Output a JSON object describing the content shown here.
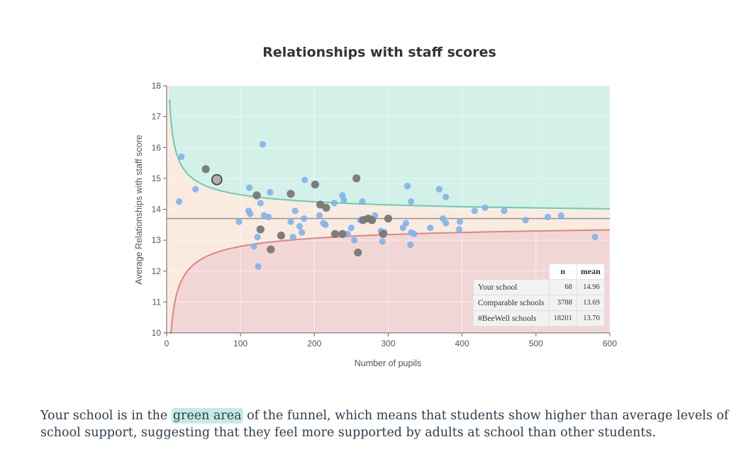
{
  "chart_data": {
    "type": "scatter",
    "title": "Relationships with staff scores",
    "xlabel": "Number of pupils",
    "ylabel": "Average Relationships with staff score",
    "xlim": [
      0,
      600
    ],
    "ylim": [
      10,
      18
    ],
    "x_ticks": [
      "0",
      "100",
      "200",
      "300",
      "400",
      "500",
      "600"
    ],
    "y_ticks": [
      "10",
      "11",
      "12",
      "13",
      "14",
      "15",
      "16",
      "17",
      "18"
    ],
    "grid": true,
    "mean_line": 13.7,
    "colors": {
      "green_area": "#d3f0e9",
      "neutral_area": "#f9ebdf",
      "red_area": "#f2d6d6",
      "upper_curve": "#6ccbb0",
      "lower_curve": "#de8580",
      "mean_line": "#9a9a9a",
      "blue_points": "#7fb3ec",
      "grey_points": "#777777",
      "your_school": "#b0b0b0"
    },
    "series": [
      {
        "id": "other",
        "points": [
          [
            20,
            15.7
          ],
          [
            17,
            14.25
          ],
          [
            39,
            14.65
          ],
          [
            98,
            13.6
          ],
          [
            112,
            14.7
          ],
          [
            111,
            13.95
          ],
          [
            113,
            13.85
          ],
          [
            118,
            12.8
          ],
          [
            123,
            13.1
          ],
          [
            124,
            12.15
          ],
          [
            127,
            14.2
          ],
          [
            130,
            16.1
          ],
          [
            132,
            13.8
          ],
          [
            138,
            13.75
          ],
          [
            140,
            14.55
          ],
          [
            168,
            13.6
          ],
          [
            171,
            13.1
          ],
          [
            174,
            13.95
          ],
          [
            180,
            13.45
          ],
          [
            183,
            13.25
          ],
          [
            186,
            13.7
          ],
          [
            187,
            14.95
          ],
          [
            207,
            13.8
          ],
          [
            212,
            13.55
          ],
          [
            215,
            13.5
          ],
          [
            227,
            14.2
          ],
          [
            238,
            14.45
          ],
          [
            240,
            14.3
          ],
          [
            245,
            13.2
          ],
          [
            250,
            13.4
          ],
          [
            254,
            13
          ],
          [
            262,
            13.65
          ],
          [
            265,
            14.25
          ],
          [
            270,
            13.7
          ],
          [
            282,
            13.8
          ],
          [
            290,
            13.3
          ],
          [
            292,
            12.95
          ],
          [
            295,
            13.25
          ],
          [
            320,
            13.4
          ],
          [
            324,
            13.55
          ],
          [
            326,
            14.75
          ],
          [
            330,
            12.85
          ],
          [
            331,
            14.25
          ],
          [
            331,
            13.25
          ],
          [
            335,
            13.2
          ],
          [
            357,
            13.4
          ],
          [
            369,
            14.65
          ],
          [
            374,
            13.7
          ],
          [
            378,
            14.4
          ],
          [
            378,
            13.55
          ],
          [
            396,
            13.35
          ],
          [
            397,
            13.6
          ],
          [
            417,
            13.95
          ],
          [
            431,
            14.05
          ],
          [
            457,
            13.95
          ],
          [
            486,
            13.65
          ],
          [
            516,
            13.75
          ],
          [
            534,
            13.8
          ],
          [
            580,
            13.1
          ]
        ]
      },
      {
        "id": "comparable",
        "points": [
          [
            53,
            15.3
          ],
          [
            122,
            14.45
          ],
          [
            127,
            13.35
          ],
          [
            141,
            12.7
          ],
          [
            155,
            13.15
          ],
          [
            168,
            14.5
          ],
          [
            201,
            14.8
          ],
          [
            208,
            14.15
          ],
          [
            216,
            14.05
          ],
          [
            228,
            13.2
          ],
          [
            238,
            13.2
          ],
          [
            257,
            15
          ],
          [
            259,
            12.6
          ],
          [
            266,
            13.65
          ],
          [
            273,
            13.7
          ],
          [
            278,
            13.65
          ],
          [
            293,
            13.2
          ],
          [
            300,
            13.7
          ]
        ]
      },
      {
        "id": "your_school",
        "points": [
          [
            68,
            14.96
          ]
        ]
      }
    ],
    "table": {
      "columns": [
        "n",
        "mean"
      ],
      "rows": [
        {
          "label": "Your school",
          "n": "68",
          "mean": "14.96"
        },
        {
          "label": "Comparable schools",
          "n": "3788",
          "mean": "13.69"
        },
        {
          "label": "#BeeWell schools",
          "n": "18201",
          "mean": "13.70"
        }
      ]
    }
  },
  "narrative": {
    "before": "Your school is in the ",
    "highlight": "green area",
    "after": " of the funnel, which means that students show higher than average levels of school support, suggesting that they feel more supported by adults at school than other students."
  }
}
